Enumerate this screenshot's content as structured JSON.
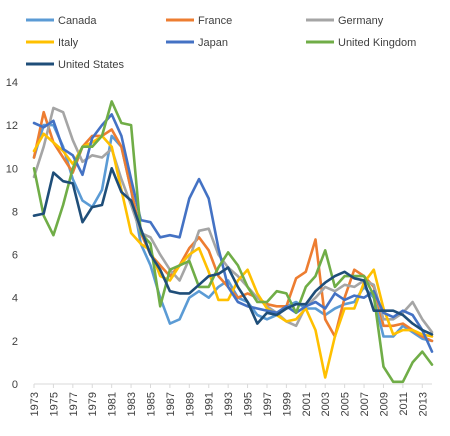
{
  "chart_data": {
    "type": "line",
    "title": "",
    "xlabel": "",
    "ylabel": "",
    "ylim": [
      0,
      14
    ],
    "yticks": [
      0,
      2,
      4,
      6,
      8,
      10,
      12,
      14
    ],
    "grid": false,
    "legend_position": "top",
    "x": [
      1973,
      1974,
      1975,
      1976,
      1977,
      1978,
      1979,
      1980,
      1981,
      1982,
      1983,
      1984,
      1985,
      1986,
      1987,
      1988,
      1989,
      1990,
      1991,
      1992,
      1993,
      1994,
      1995,
      1996,
      1997,
      1998,
      1999,
      2000,
      2001,
      2002,
      2003,
      2004,
      2005,
      2006,
      2007,
      2008,
      2009,
      2010,
      2011,
      2012,
      2013,
      2014
    ],
    "xticks": [
      "1973",
      "1975",
      "1977",
      "1979",
      "1981",
      "1983",
      "1985",
      "1987",
      "1989",
      "1991",
      "1993",
      "1995",
      "1997",
      "1999",
      "2001",
      "2003",
      "2005",
      "2007",
      "2009",
      "2011",
      "2013"
    ],
    "series": [
      {
        "name": "Canada",
        "color": "#5b9bd5",
        "values": [
          10.5,
          12.0,
          12.0,
          11.0,
          9.5,
          8.5,
          8.2,
          9.0,
          11.5,
          11.0,
          9.0,
          6.5,
          5.5,
          4.0,
          2.8,
          3.0,
          4.0,
          4.3,
          4.0,
          4.5,
          4.8,
          4.0,
          3.8,
          3.2,
          3.0,
          3.2,
          3.6,
          3.8,
          3.5,
          3.5,
          3.2,
          3.5,
          3.7,
          3.8,
          4.5,
          4.0,
          2.2,
          2.2,
          2.7,
          2.4,
          2.1,
          2.0
        ]
      },
      {
        "name": "France",
        "color": "#ed7d31",
        "values": [
          10.5,
          12.6,
          11.2,
          10.5,
          9.8,
          11.0,
          11.5,
          11.5,
          11.8,
          11.0,
          9.0,
          7.0,
          6.0,
          5.5,
          5.0,
          5.5,
          6.3,
          6.8,
          6.2,
          5.0,
          4.5,
          4.0,
          4.2,
          4.0,
          3.7,
          3.6,
          3.6,
          4.9,
          5.2,
          6.7,
          3.0,
          2.2,
          4.0,
          5.3,
          5.0,
          4.5,
          2.7,
          2.7,
          2.8,
          2.5,
          2.2,
          2.0
        ]
      },
      {
        "name": "Germany",
        "color": "#a5a5a5",
        "values": [
          9.6,
          11.0,
          12.8,
          12.6,
          11.3,
          10.3,
          10.6,
          10.5,
          10.9,
          9.5,
          8.3,
          7.0,
          6.8,
          6.0,
          5.3,
          4.8,
          5.8,
          7.1,
          7.2,
          6.0,
          5.4,
          5.0,
          4.5,
          4.0,
          3.6,
          3.3,
          2.9,
          2.7,
          3.6,
          4.0,
          4.5,
          4.3,
          4.6,
          4.5,
          4.8,
          4.6,
          3.0,
          3.0,
          3.3,
          3.8,
          3.0,
          2.4
        ]
      },
      {
        "name": "Italy",
        "color": "#ffc000",
        "values": [
          10.8,
          11.6,
          11.2,
          10.8,
          10.2,
          11.0,
          11.2,
          11.5,
          11.0,
          9.0,
          7.0,
          6.5,
          6.2,
          5.0,
          4.8,
          5.5,
          6.0,
          6.3,
          5.2,
          3.9,
          3.9,
          4.8,
          5.3,
          4.2,
          3.5,
          3.2,
          2.9,
          3.0,
          3.5,
          2.5,
          0.3,
          2.2,
          3.5,
          3.5,
          4.7,
          5.3,
          3.5,
          2.3,
          2.5,
          2.5,
          2.3,
          2.2
        ]
      },
      {
        "name": "Japan",
        "color": "#4472c4",
        "values": [
          12.1,
          11.9,
          12.2,
          10.9,
          10.6,
          9.7,
          11.4,
          12.0,
          12.5,
          11.5,
          9.5,
          7.6,
          7.5,
          6.8,
          6.9,
          6.8,
          8.6,
          9.5,
          8.6,
          6.3,
          4.5,
          3.8,
          3.6,
          3.5,
          3.4,
          3.3,
          3.6,
          3.3,
          3.6,
          3.8,
          3.5,
          4.2,
          3.9,
          4.1,
          4.0,
          4.3,
          3.3,
          3.1,
          3.4,
          3.2,
          2.5,
          1.5
        ]
      },
      {
        "name": "United Kingdom",
        "color": "#70ad47",
        "values": [
          10.0,
          7.8,
          6.9,
          8.3,
          10.0,
          11.0,
          11.0,
          11.5,
          13.1,
          12.1,
          12.0,
          7.0,
          6.5,
          3.6,
          5.3,
          5.5,
          5.7,
          4.5,
          4.5,
          5.4,
          6.1,
          5.5,
          4.5,
          3.8,
          3.8,
          4.3,
          4.2,
          3.3,
          4.5,
          5.0,
          6.2,
          4.5,
          5.0,
          5.0,
          5.0,
          4.1,
          0.8,
          0.1,
          0.1,
          1.0,
          1.5,
          0.9
        ]
      },
      {
        "name": "United States",
        "color": "#1f4e79",
        "values": [
          7.8,
          7.9,
          9.8,
          9.4,
          9.3,
          7.5,
          8.2,
          8.3,
          10.0,
          8.9,
          8.5,
          7.2,
          6.0,
          5.3,
          4.3,
          4.2,
          4.2,
          4.6,
          5.0,
          5.1,
          5.4,
          4.5,
          3.8,
          2.8,
          3.3,
          3.2,
          3.5,
          3.7,
          3.7,
          4.3,
          4.7,
          5.0,
          5.2,
          4.9,
          4.8,
          3.4,
          3.4,
          3.4,
          3.2,
          2.8,
          2.5,
          2.3
        ]
      }
    ]
  }
}
